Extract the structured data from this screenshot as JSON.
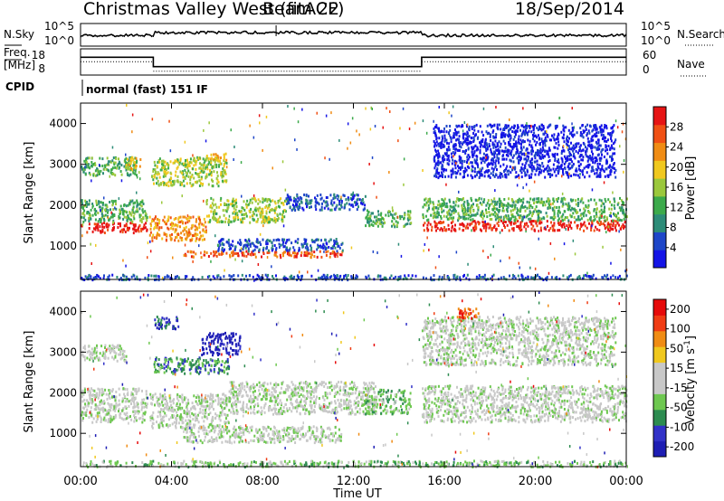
{
  "header": {
    "title": "Christmas Valley West (fitACF)",
    "beam": "Beam 22",
    "date": "18/Sep/2014"
  },
  "noise_panel": {
    "left_label": "N.Sky",
    "right_label": "N.Search",
    "left_ticks": [
      "10^5",
      "10^0"
    ],
    "right_ticks": [
      "10^5",
      "10^0"
    ]
  },
  "freq_panel": {
    "left_label_1": "Freq.",
    "left_label_2": "[MHz]",
    "left_ticks": [
      "18",
      "8"
    ],
    "right_label": "Nave",
    "right_ticks": [
      "60",
      "0"
    ],
    "freq_segments": [
      {
        "x": [
          0,
          3.2
        ],
        "y": 15.5
      },
      {
        "x": [
          3.2,
          15.0
        ],
        "y": 10.5
      },
      {
        "x": [
          15.0,
          24.0
        ],
        "y": 15.5
      }
    ]
  },
  "cpid": {
    "label": "CPID",
    "text": "normal (fast) 151 IF"
  },
  "colors": {
    "power": [
      "#1414e6",
      "#1e46c8",
      "#2d8c78",
      "#3caa4b",
      "#9bc83c",
      "#f0c81e",
      "#f08c14",
      "#f05014",
      "#e61414"
    ],
    "velocity": [
      "#1e1eb4",
      "#3232c8",
      "#2d8c50",
      "#6ec850",
      "#c8c8c8",
      "#c8c8c8",
      "#f0c81e",
      "#f08c14",
      "#f03c14",
      "#e60a0a"
    ]
  },
  "x_axis": {
    "label": "Time UT",
    "ticks": [
      "00:00",
      "04:00",
      "08:00",
      "12:00",
      "16:00",
      "20:00",
      "00:00"
    ]
  },
  "y_axis": {
    "label": "Slant Range [km]",
    "ticks": [
      "1000",
      "2000",
      "3000",
      "4000"
    ]
  },
  "power_bar": {
    "label": "Power [dB]",
    "ticks": [
      "4",
      "8",
      "12",
      "16",
      "20",
      "24",
      "28"
    ]
  },
  "velocity_bar": {
    "label": "Velocity [m s",
    "label_sup": "-1",
    "label_close": "]",
    "ticks": [
      "200",
      "100",
      "50",
      "15",
      "-15",
      "-50",
      "-100",
      "-200"
    ]
  },
  "chart_data": {
    "type": "heatmap",
    "x_unit": "hours UT",
    "xlim": [
      0,
      24
    ],
    "y_unit": "km",
    "ylim": [
      180,
      4500
    ],
    "power_colorbar_range_db": [
      0,
      32
    ],
    "velocity_colorbar_range_ms": [
      -250,
      250
    ],
    "power_bands": [
      {
        "x": [
          0.0,
          2.9
        ],
        "range": [
          1350,
          1600
        ],
        "level": 8
      },
      {
        "x": [
          0.0,
          2.9
        ],
        "range": [
          1600,
          2150
        ],
        "level": 3
      },
      {
        "x": [
          0.0,
          2.5
        ],
        "range": [
          2750,
          3200
        ],
        "level": 3
      },
      {
        "x": [
          1.9,
          2.6
        ],
        "range": [
          2900,
          3200
        ],
        "level": 5
      },
      {
        "x": [
          3.0,
          5.5
        ],
        "range": [
          1150,
          1750
        ],
        "level": 6
      },
      {
        "x": [
          5.5,
          9.0
        ],
        "range": [
          1600,
          2200
        ],
        "level": 4
      },
      {
        "x": [
          3.1,
          6.4
        ],
        "range": [
          2500,
          3200
        ],
        "level": 4
      },
      {
        "x": [
          5.5,
          6.4
        ],
        "range": [
          3100,
          3300
        ],
        "level": 5
      },
      {
        "x": [
          4.5,
          11.5
        ],
        "range": [
          750,
          900
        ],
        "level": 7
      },
      {
        "x": [
          6.0,
          11.5
        ],
        "range": [
          900,
          1200
        ],
        "level": 1
      },
      {
        "x": [
          9.0,
          12.5
        ],
        "range": [
          1900,
          2300
        ],
        "level": 1
      },
      {
        "x": [
          12.5,
          14.5
        ],
        "range": [
          1500,
          1900
        ],
        "level": 3
      },
      {
        "x": [
          15.0,
          24.0
        ],
        "range": [
          1400,
          1650
        ],
        "level": 8
      },
      {
        "x": [
          15.0,
          24.0
        ],
        "range": [
          1650,
          2200
        ],
        "level": 3
      },
      {
        "x": [
          15.5,
          23.5
        ],
        "range": [
          2700,
          4000
        ],
        "level": 0
      },
      {
        "x": [
          0.0,
          24.0
        ],
        "range": [
          200,
          320
        ],
        "level": 1
      }
    ],
    "velocity_bands": [
      {
        "x": [
          0.0,
          2.9
        ],
        "range": [
          1300,
          2150
        ],
        "level": 4
      },
      {
        "x": [
          0.0,
          2.0
        ],
        "range": [
          2800,
          3200
        ],
        "level": 4
      },
      {
        "x": [
          3.0,
          6.5
        ],
        "range": [
          1150,
          2000
        ],
        "level": 4
      },
      {
        "x": [
          6.5,
          13.0
        ],
        "range": [
          1500,
          2300
        ],
        "level": 4
      },
      {
        "x": [
          3.2,
          6.5
        ],
        "range": [
          2500,
          2900
        ],
        "level": 2
      },
      {
        "x": [
          5.3,
          7.0
        ],
        "range": [
          2950,
          3500
        ],
        "level": 0
      },
      {
        "x": [
          3.2,
          4.3
        ],
        "range": [
          3600,
          3900
        ],
        "level": 1
      },
      {
        "x": [
          4.5,
          11.5
        ],
        "range": [
          800,
          1200
        ],
        "level": 4
      },
      {
        "x": [
          12.5,
          14.5
        ],
        "range": [
          1500,
          2100
        ],
        "level": 3
      },
      {
        "x": [
          15.0,
          24.0
        ],
        "range": [
          1300,
          2200
        ],
        "level": 4
      },
      {
        "x": [
          15.0,
          23.5
        ],
        "range": [
          2700,
          3900
        ],
        "level": 4
      },
      {
        "x": [
          16.5,
          17.5
        ],
        "range": [
          3800,
          4100
        ],
        "level": 8
      },
      {
        "x": [
          0.0,
          24.0
        ],
        "range": [
          200,
          350
        ],
        "level": 3
      }
    ]
  }
}
